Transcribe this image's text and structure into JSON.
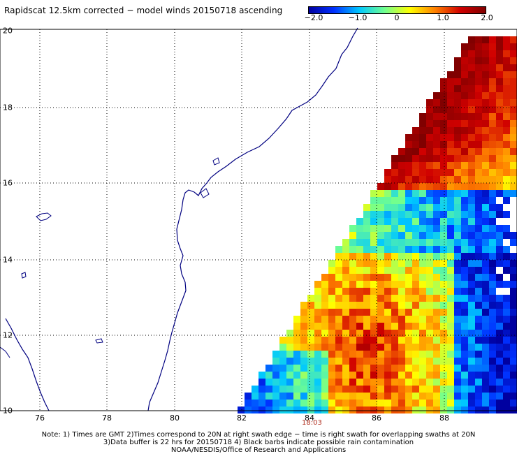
{
  "title": "Rapidscat 12.5km corrected − model winds 20150718 ascending",
  "colorbar": {
    "ticks": [
      "−2.0",
      "−1.0",
      "0",
      "1.0",
      "2.0"
    ],
    "colors": [
      "#0000a0",
      "#0030ff",
      "#00c8ff",
      "#70ff90",
      "#ffff00",
      "#ff8000",
      "#d00000",
      "#800000"
    ]
  },
  "axes": {
    "lat_labels": [
      "20",
      "18",
      "16",
      "14",
      "12",
      "10"
    ],
    "lon_labels": [
      "76",
      "78",
      "80",
      "82",
      "84",
      "86",
      "88"
    ]
  },
  "time_label": "18:03",
  "notes": {
    "line1": "Note: 1) Times are GMT 2)Times correspond to 20N at right swath edge − time is right swath for overlapping swaths at 20N",
    "line2": "3)Data buffer is 22 hrs for 20150718 4) Black barbs indicate possible rain contamination",
    "line3": "NOAA/NESDIS/Office of Research and Applications"
  },
  "colors": {
    "coastline": "#000080",
    "grid": "#000000",
    "time_label": "#b03020"
  }
}
